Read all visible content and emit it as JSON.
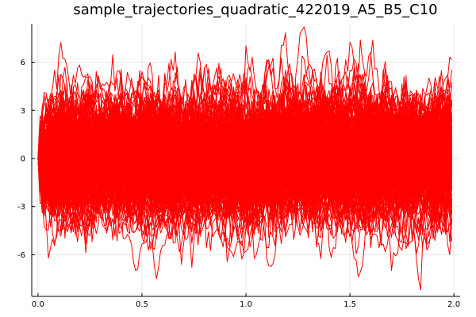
{
  "chart_data": {
    "type": "line",
    "title": "sample_trajectories_quadratic_422019_A5_B5_C10",
    "xlabel": "",
    "ylabel": "",
    "xlim": [
      -0.03,
      2.03
    ],
    "ylim": [
      -8.6,
      8.4
    ],
    "x_ticks": [
      0.0,
      0.5,
      1.0,
      1.5,
      2.0
    ],
    "x_tick_labels": [
      "0.0",
      "0.5",
      "1.0",
      "1.5",
      "2.0"
    ],
    "y_ticks": [
      -6,
      -3,
      0,
      3,
      6
    ],
    "y_tick_labels": [
      "-6",
      "-3",
      "0",
      "3",
      "6"
    ],
    "grid": true,
    "legend": "none",
    "series_color": "#ff0000",
    "x_start": 0.0,
    "x_end": 1.99,
    "x_step": 0.01,
    "start_value": 0.0,
    "typical_band": [
      -3.5,
      3.5
    ],
    "observed_max": 8.2,
    "observed_min": -8.2,
    "trajectory_count": 200
  }
}
